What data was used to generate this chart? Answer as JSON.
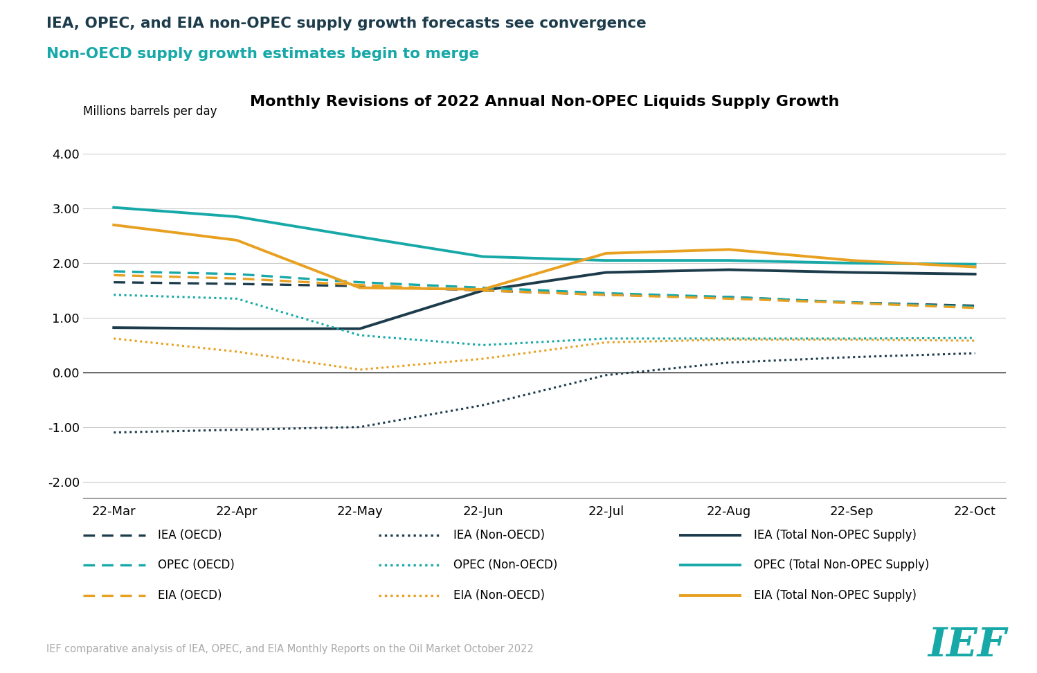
{
  "title": "Monthly Revisions of 2022 Annual Non-OPEC Liquids Supply Growth",
  "suptitle_line1": "IEA, OPEC, and EIA non-OPEC supply growth forecasts see convergence",
  "suptitle_line2": "Non-OECD supply growth estimates begin to merge",
  "ylabel": "Millions barrels per day",
  "footer": "IEF comparative analysis of IEA, OPEC, and EIA Monthly Reports on the Oil Market October 2022",
  "x_labels": [
    "22-Mar",
    "22-Apr",
    "22-May",
    "22-Jun",
    "22-Jul",
    "22-Aug",
    "22-Sep",
    "22-Oct"
  ],
  "ylim": [
    -2.3,
    4.6
  ],
  "yticks": [
    -2.0,
    -1.0,
    0.0,
    1.0,
    2.0,
    3.0,
    4.0
  ],
  "color_iea": "#1d3c4b",
  "color_opec": "#17a8a8",
  "color_eia": "#e8a020",
  "series": {
    "IEA_OECD": [
      1.65,
      1.62,
      1.58,
      1.5,
      1.42,
      1.38,
      1.28,
      1.22
    ],
    "IEA_NonOECD": [
      -1.1,
      -1.05,
      -1.0,
      -0.6,
      -0.05,
      0.18,
      0.28,
      0.35
    ],
    "IEA_Total": [
      0.82,
      0.8,
      0.8,
      1.5,
      1.83,
      1.88,
      1.83,
      1.8
    ],
    "OPEC_OECD": [
      1.85,
      1.8,
      1.65,
      1.55,
      1.45,
      1.38,
      1.28,
      1.2
    ],
    "OPEC_NonOECD": [
      1.42,
      1.35,
      0.68,
      0.5,
      0.62,
      0.62,
      0.62,
      0.63
    ],
    "OPEC_Total": [
      3.02,
      2.85,
      2.48,
      2.12,
      2.05,
      2.05,
      2.0,
      1.98
    ],
    "EIA_OECD": [
      1.78,
      1.72,
      1.6,
      1.5,
      1.42,
      1.35,
      1.27,
      1.18
    ],
    "EIA_NonOECD": [
      0.62,
      0.38,
      0.05,
      0.25,
      0.55,
      0.6,
      0.6,
      0.58
    ],
    "EIA_Total": [
      2.7,
      2.42,
      1.55,
      1.52,
      2.18,
      2.25,
      2.05,
      1.93
    ]
  },
  "legend_items": [
    {
      "label": "IEA (OECD)",
      "color": "#1d3c4b",
      "style": "dashed"
    },
    {
      "label": "IEA (Non-OECD)",
      "color": "#1d3c4b",
      "style": "dotted"
    },
    {
      "label": "IEA (Total Non-OPEC Supply)",
      "color": "#1d3c4b",
      "style": "solid"
    },
    {
      "label": "OPEC (OECD)",
      "color": "#17a8a8",
      "style": "dashed"
    },
    {
      "label": "OPEC (Non-OECD)",
      "color": "#17a8a8",
      "style": "dotted"
    },
    {
      "label": "OPEC (Total Non-OPEC Supply)",
      "color": "#17a8a8",
      "style": "solid"
    },
    {
      "label": "EIA (OECD)",
      "color": "#e8a020",
      "style": "dashed"
    },
    {
      "label": "EIA (Non-OECD)",
      "color": "#e8a020",
      "style": "dotted"
    },
    {
      "label": "EIA (Total Non-OPEC Supply)",
      "color": "#e8a020",
      "style": "solid"
    }
  ]
}
